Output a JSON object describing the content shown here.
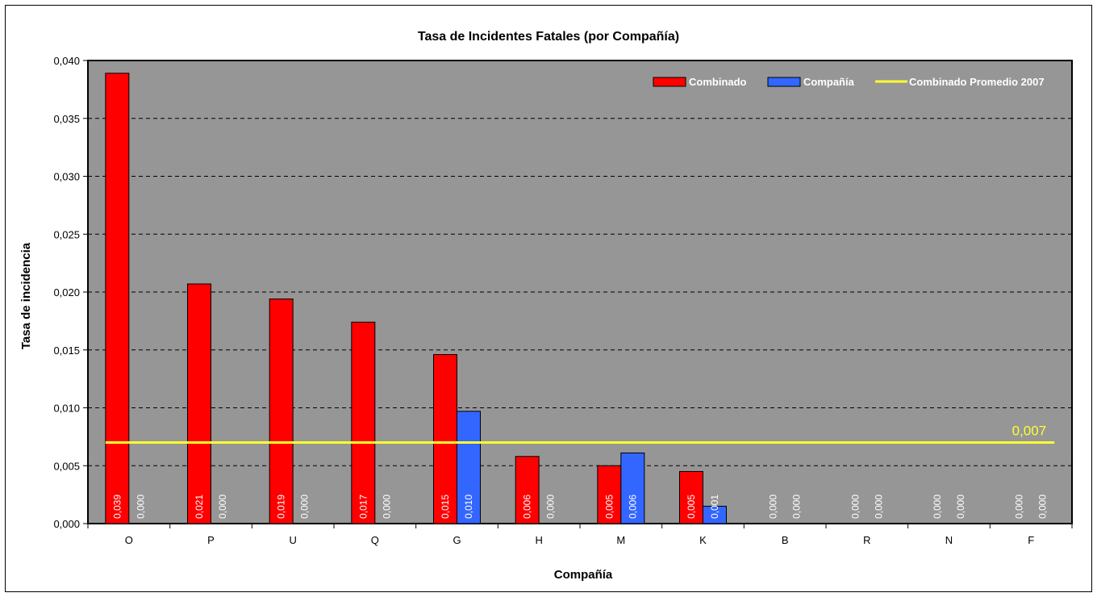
{
  "chart_data": {
    "type": "bar",
    "title": "Tasa de Incidentes Fatales (por Compañía)",
    "xlabel": "Compañía",
    "ylabel": "Tasa de incidencia",
    "ylim": [
      0,
      0.04
    ],
    "yticks": [
      "0,000",
      "0,005",
      "0,010",
      "0,015",
      "0,020",
      "0,025",
      "0,030",
      "0,035",
      "0,040"
    ],
    "ytick_values": [
      0,
      0.005,
      0.01,
      0.015,
      0.02,
      0.025,
      0.03,
      0.035,
      0.04
    ],
    "categories": [
      "O",
      "P",
      "U",
      "Q",
      "G",
      "H",
      "M",
      "K",
      "B",
      "R",
      "N",
      "F"
    ],
    "series": [
      {
        "name": "Combinado",
        "color": "#ff0000",
        "values": [
          0.0389,
          0.0207,
          0.0194,
          0.0174,
          0.0146,
          0.0058,
          0.005,
          0.0045,
          0,
          0,
          0,
          0
        ],
        "labels": [
          "0,039",
          "0,021",
          "0,019",
          "0,017",
          "0,015",
          "0,006",
          "0,005",
          "0,005",
          "0,000",
          "0,000",
          "0,000",
          "0,000"
        ]
      },
      {
        "name": "Compañía",
        "color": "#3366ff",
        "values": [
          0,
          0,
          0,
          0,
          0.0097,
          0,
          0.0061,
          0.0015,
          0,
          0,
          0,
          0
        ],
        "labels": [
          "0,000",
          "0,000",
          "0,000",
          "0,000",
          "0,010",
          "0,000",
          "0,006",
          "0,001",
          "0,000",
          "0,000",
          "0,000",
          "0,000"
        ]
      }
    ],
    "reference_line": {
      "name": "Combinado Promedio 2007",
      "value": 0.007,
      "label": "0,007",
      "color": "#ffff33"
    },
    "plot_background": "#969696",
    "grid": "horizontal dashed",
    "legend_position": "top-right"
  }
}
